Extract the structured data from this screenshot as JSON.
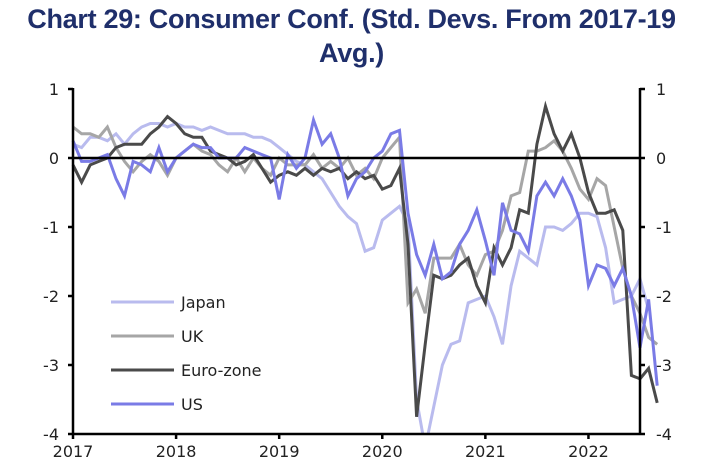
{
  "chart_data": {
    "type": "line",
    "title": "Chart 29: Consumer Conf. (Std. Devs. From 2017-19 Avg.)",
    "xlabel": "",
    "ylabel": "",
    "ylim": [
      -4,
      1
    ],
    "xlim": [
      2017.0,
      2022.5
    ],
    "y_ticks": [
      1,
      0,
      -1,
      -2,
      -3,
      -4
    ],
    "y_tick_labels": [
      "1",
      "0",
      "-1",
      "-2",
      "-3",
      "-4"
    ],
    "x_ticks": [
      2017,
      2018,
      2019,
      2020,
      2021,
      2022
    ],
    "x_tick_labels": [
      "2017",
      "2018",
      "2019",
      "2020",
      "2021",
      "2022"
    ],
    "grid": false,
    "dual_y_axis": true,
    "zero_line": true,
    "legend_position": "bottom-left",
    "frequency": "monthly",
    "start": "2017-01",
    "series": [
      {
        "name": "Japan",
        "color": "#b9bbee",
        "values": [
          0.2,
          0.15,
          0.3,
          0.3,
          0.25,
          0.35,
          0.2,
          0.35,
          0.45,
          0.5,
          0.5,
          0.45,
          0.5,
          0.45,
          0.45,
          0.4,
          0.45,
          0.4,
          0.35,
          0.35,
          0.35,
          0.3,
          0.3,
          0.25,
          0.15,
          0.05,
          -0.05,
          -0.1,
          -0.2,
          -0.3,
          -0.5,
          -0.7,
          -0.85,
          -0.95,
          -1.35,
          -1.3,
          -0.9,
          -0.8,
          -0.7,
          -0.95,
          -3.5,
          -4.2,
          -3.6,
          -3.0,
          -2.7,
          -2.65,
          -2.1,
          -2.05,
          -2.0,
          -2.3,
          -2.7,
          -1.85,
          -1.35,
          -1.45,
          -1.55,
          -1.0,
          -1.0,
          -1.05,
          -0.95,
          -0.8,
          -0.8,
          -0.85,
          -1.3,
          -2.1,
          -2.05,
          -2.0,
          -1.75,
          -2.2
        ]
      },
      {
        "name": "UK",
        "color": "#a6a6a6",
        "values": [
          0.45,
          0.35,
          0.35,
          0.3,
          0.45,
          0.15,
          -0.05,
          -0.2,
          -0.05,
          0.05,
          -0.05,
          -0.25,
          0.0,
          0.1,
          0.2,
          0.1,
          0.05,
          -0.1,
          -0.2,
          0.0,
          -0.2,
          0.0,
          -0.15,
          -0.25,
          0.0,
          -0.1,
          -0.1,
          -0.1,
          0.05,
          -0.15,
          -0.05,
          -0.15,
          0.0,
          -0.25,
          -0.15,
          -0.3,
          0.0,
          0.15,
          0.3,
          -2.1,
          -1.9,
          -2.25,
          -1.45,
          -1.45,
          -1.45,
          -1.25,
          -1.55,
          -1.7,
          -1.4,
          -1.35,
          -1.05,
          -0.55,
          -0.5,
          0.1,
          0.1,
          0.15,
          0.25,
          0.1,
          -0.15,
          -0.45,
          -0.6,
          -0.3,
          -0.4,
          -1.0,
          -1.6,
          -2.0,
          -2.25,
          -2.6,
          -2.7
        ]
      },
      {
        "name": "Euro-zone",
        "color": "#4a4a4a",
        "values": [
          -0.1,
          -0.35,
          -0.1,
          -0.05,
          0.0,
          0.15,
          0.2,
          0.2,
          0.2,
          0.35,
          0.45,
          0.6,
          0.5,
          0.35,
          0.3,
          0.3,
          0.1,
          0.05,
          0.0,
          -0.1,
          -0.05,
          0.05,
          -0.15,
          -0.35,
          -0.25,
          -0.2,
          -0.25,
          -0.15,
          -0.25,
          -0.15,
          -0.2,
          -0.15,
          -0.3,
          -0.2,
          -0.3,
          -0.25,
          -0.45,
          -0.4,
          -0.15,
          -1.25,
          -3.75,
          -2.7,
          -1.7,
          -1.75,
          -1.7,
          -1.55,
          -1.45,
          -1.85,
          -2.1,
          -1.3,
          -1.55,
          -1.3,
          -0.75,
          -0.8,
          0.2,
          0.75,
          0.35,
          0.1,
          0.35,
          0.0,
          -0.5,
          -0.8,
          -0.8,
          -0.75,
          -1.05,
          -3.15,
          -3.2,
          -3.05,
          -3.55
        ]
      },
      {
        "name": "US",
        "color": "#7a7be6",
        "values": [
          0.25,
          -0.05,
          -0.05,
          0.0,
          0.05,
          -0.3,
          -0.55,
          -0.05,
          -0.1,
          -0.2,
          0.15,
          -0.2,
          0.0,
          0.1,
          0.2,
          0.15,
          0.15,
          0.0,
          0.0,
          0.0,
          0.15,
          0.1,
          0.05,
          0.0,
          -0.6,
          0.05,
          -0.15,
          0.0,
          0.55,
          0.2,
          0.35,
          0.0,
          -0.55,
          -0.3,
          -0.2,
          0.0,
          0.1,
          0.35,
          0.4,
          -0.8,
          -1.4,
          -1.7,
          -1.25,
          -1.75,
          -1.65,
          -1.25,
          -1.05,
          -0.75,
          -1.2,
          -1.7,
          -0.65,
          -1.05,
          -1.1,
          -1.35,
          -0.55,
          -0.35,
          -0.55,
          -0.3,
          -0.55,
          -0.9,
          -1.85,
          -1.55,
          -1.6,
          -1.85,
          -1.6,
          -2.0,
          -2.75,
          -2.05,
          -3.3
        ]
      }
    ]
  }
}
